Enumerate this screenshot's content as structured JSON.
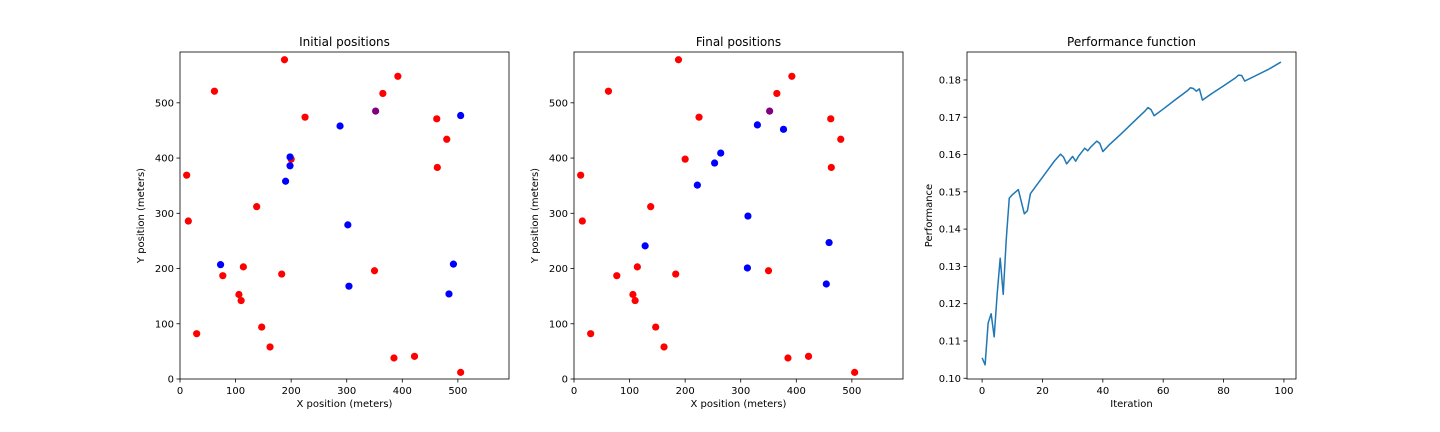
{
  "chart_data": [
    {
      "type": "scatter",
      "title": "Initial positions",
      "xlabel": "X position (meters)",
      "ylabel": "Y position (meters)",
      "xlim": [
        0,
        592
      ],
      "ylim": [
        0,
        592
      ],
      "xticks": [
        0,
        100,
        200,
        300,
        400,
        500
      ],
      "yticks": [
        0,
        100,
        200,
        300,
        400,
        500
      ],
      "grid": false,
      "series": [
        {
          "color": "#ff0000",
          "points": [
            [
              188,
              578
            ],
            [
              62,
              521
            ],
            [
              392,
              548
            ],
            [
              365,
              517
            ],
            [
              225,
              474
            ],
            [
              462,
              471
            ],
            [
              480,
              434
            ],
            [
              200,
              398
            ],
            [
              463,
              383
            ],
            [
              12,
              369
            ],
            [
              15,
              286
            ],
            [
              138,
              312
            ],
            [
              114,
              203
            ],
            [
              77,
              187
            ],
            [
              183,
              190
            ],
            [
              350,
              196
            ],
            [
              106,
              153
            ],
            [
              110,
              142
            ],
            [
              147,
              94
            ],
            [
              30,
              82
            ],
            [
              162,
              58
            ],
            [
              385,
              38
            ],
            [
              422,
              41
            ],
            [
              505,
              12
            ]
          ]
        },
        {
          "color": "#0000ff",
          "points": [
            [
              505,
              477
            ],
            [
              288,
              458
            ],
            [
              198,
              402
            ],
            [
              198,
              386
            ],
            [
              190,
              358
            ],
            [
              302,
              279
            ],
            [
              73,
              207
            ],
            [
              492,
              208
            ],
            [
              484,
              154
            ],
            [
              304,
              168
            ]
          ]
        },
        {
          "color": "#800080",
          "points": [
            [
              352,
              485
            ]
          ]
        }
      ]
    },
    {
      "type": "scatter",
      "title": "Final positions",
      "xlabel": "X position (meters)",
      "ylabel": "Y position (meters)",
      "xlim": [
        0,
        592
      ],
      "ylim": [
        0,
        592
      ],
      "xticks": [
        0,
        100,
        200,
        300,
        400,
        500
      ],
      "yticks": [
        0,
        100,
        200,
        300,
        400,
        500
      ],
      "grid": false,
      "series": [
        {
          "color": "#ff0000",
          "points": [
            [
              188,
              578
            ],
            [
              62,
              521
            ],
            [
              392,
              548
            ],
            [
              365,
              517
            ],
            [
              225,
              474
            ],
            [
              462,
              471
            ],
            [
              480,
              434
            ],
            [
              200,
              398
            ],
            [
              463,
              383
            ],
            [
              12,
              369
            ],
            [
              15,
              286
            ],
            [
              138,
              312
            ],
            [
              114,
              203
            ],
            [
              77,
              187
            ],
            [
              183,
              190
            ],
            [
              350,
              196
            ],
            [
              106,
              153
            ],
            [
              110,
              142
            ],
            [
              147,
              94
            ],
            [
              30,
              82
            ],
            [
              162,
              58
            ],
            [
              385,
              38
            ],
            [
              422,
              41
            ],
            [
              505,
              12
            ]
          ]
        },
        {
          "color": "#0000ff",
          "points": [
            [
              330,
              460
            ],
            [
              377,
              452
            ],
            [
              264,
              409
            ],
            [
              253,
              391
            ],
            [
              222,
              351
            ],
            [
              313,
              295
            ],
            [
              128,
              241
            ],
            [
              312,
              201
            ],
            [
              459,
              247
            ],
            [
              454,
              172
            ]
          ]
        },
        {
          "color": "#800080",
          "points": [
            [
              352,
              485
            ]
          ]
        }
      ]
    },
    {
      "type": "line",
      "title": "Performance function",
      "xlabel": "Iteration",
      "ylabel": "Performance",
      "xlim": [
        -5,
        104
      ],
      "ylim": [
        0.0998,
        0.1875
      ],
      "xticks": [
        0,
        20,
        40,
        60,
        80,
        100
      ],
      "yticks": [
        0.1,
        0.11,
        0.12,
        0.13,
        0.14,
        0.15,
        0.16,
        0.17,
        0.18
      ],
      "ytick_labels": [
        "0.10",
        "0.11",
        "0.12",
        "0.13",
        "0.14",
        "0.15",
        "0.16",
        "0.17",
        "0.18"
      ],
      "grid": false,
      "series": [
        {
          "color": "#1f77b4",
          "points": [
            [
              0,
              0.1055
            ],
            [
              1,
              0.1036
            ],
            [
              2,
              0.1148
            ],
            [
              3,
              0.1173
            ],
            [
              4,
              0.1111
            ],
            [
              5,
              0.1226
            ],
            [
              6,
              0.1322
            ],
            [
              7,
              0.1225
            ],
            [
              8,
              0.1372
            ],
            [
              9,
              0.1483
            ],
            [
              10,
              0.1492
            ],
            [
              12,
              0.1506
            ],
            [
              14,
              0.1441
            ],
            [
              15,
              0.1449
            ],
            [
              16,
              0.1495
            ],
            [
              18,
              0.1517
            ],
            [
              20,
              0.1539
            ],
            [
              22,
              0.1561
            ],
            [
              24,
              0.1583
            ],
            [
              26,
              0.1601
            ],
            [
              27,
              0.1593
            ],
            [
              28,
              0.1575
            ],
            [
              30,
              0.1595
            ],
            [
              31,
              0.1582
            ],
            [
              32,
              0.1596
            ],
            [
              34,
              0.1617
            ],
            [
              35,
              0.161
            ],
            [
              36,
              0.162
            ],
            [
              38,
              0.1636
            ],
            [
              39,
              0.163
            ],
            [
              40,
              0.1608
            ],
            [
              42,
              0.1625
            ],
            [
              46,
              0.1655
            ],
            [
              50,
              0.1686
            ],
            [
              54,
              0.1717
            ],
            [
              55,
              0.1726
            ],
            [
              56,
              0.172
            ],
            [
              57,
              0.1704
            ],
            [
              60,
              0.1722
            ],
            [
              64,
              0.1747
            ],
            [
              68,
              0.1771
            ],
            [
              69,
              0.1779
            ],
            [
              70,
              0.1777
            ],
            [
              71,
              0.177
            ],
            [
              72,
              0.1776
            ],
            [
              73,
              0.1746
            ],
            [
              76,
              0.1763
            ],
            [
              80,
              0.1784
            ],
            [
              84,
              0.1806
            ],
            [
              85,
              0.1813
            ],
            [
              86,
              0.1812
            ],
            [
              87,
              0.1797
            ],
            [
              90,
              0.1809
            ],
            [
              95,
              0.1829
            ],
            [
              99,
              0.1848
            ]
          ]
        }
      ]
    }
  ]
}
